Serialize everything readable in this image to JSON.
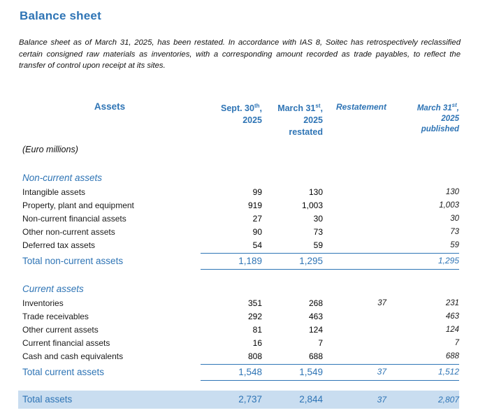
{
  "colors": {
    "heading_blue": "#2E74B5",
    "rule_blue": "#2E75B6",
    "highlight_bg": "#C9DDF0",
    "body_text": "#1a1a1a"
  },
  "title": "Balance sheet",
  "intro": "Balance sheet as of March 31, 2025, has been restated. In accordance with IAS 8, Soitec has retrospectively reclassified certain consigned raw materials as inventories, with a corresponding amount recorded as trade payables, to reflect the transfer of control upon receipt at its sites.",
  "table": {
    "unit_label": "(Euro millions)",
    "header": {
      "assets_label": "Assets",
      "sept30": {
        "pre": "Sept. 30",
        "sup": "th",
        "post": ",",
        "year": "2025"
      },
      "march31_restated": {
        "pre": "March 31",
        "sup": "st",
        "post": ",",
        "year": "2025",
        "note": "restated"
      },
      "restatement_label": "Restatement",
      "march31_published": {
        "pre": "March 31",
        "sup": "st",
        "post": ",",
        "year": "2025",
        "note": "published"
      }
    },
    "non_current": {
      "section_label": "Non-current assets",
      "rows": [
        {
          "label": "Intangible assets",
          "sept30": "99",
          "restated": "130",
          "restatement": "",
          "published": "130"
        },
        {
          "label": "Property, plant and equipment",
          "sept30": "919",
          "restated": "1,003",
          "restatement": "",
          "published": "1,003"
        },
        {
          "label": "Non-current financial assets",
          "sept30": "27",
          "restated": "30",
          "restatement": "",
          "published": "30"
        },
        {
          "label": "Other non-current assets",
          "sept30": "90",
          "restated": "73",
          "restatement": "",
          "published": "73"
        },
        {
          "label": "Deferred tax assets",
          "sept30": "54",
          "restated": "59",
          "restatement": "",
          "published": "59"
        }
      ],
      "total": {
        "label": "Total non-current assets",
        "sept30": "1,189",
        "restated": "1,295",
        "restatement": "",
        "published": "1,295"
      }
    },
    "current": {
      "section_label": "Current assets",
      "rows": [
        {
          "label": "Inventories",
          "sept30": "351",
          "restated": "268",
          "restatement": "37",
          "published": "231"
        },
        {
          "label": "Trade receivables",
          "sept30": "292",
          "restated": "463",
          "restatement": "",
          "published": "463"
        },
        {
          "label": "Other current assets",
          "sept30": "81",
          "restated": "124",
          "restatement": "",
          "published": "124"
        },
        {
          "label": "Current financial assets",
          "sept30": "16",
          "restated": "7",
          "restatement": "",
          "published": "7"
        },
        {
          "label": "Cash and cash equivalents",
          "sept30": "808",
          "restated": "688",
          "restatement": "",
          "published": "688"
        }
      ],
      "total": {
        "label": "Total current assets",
        "sept30": "1,548",
        "restated": "1,549",
        "restatement": "37",
        "published": "1,512"
      }
    },
    "grand_total": {
      "label": "Total assets",
      "sept30": "2,737",
      "restated": "2,844",
      "restatement": "37",
      "published": "2,807"
    }
  }
}
